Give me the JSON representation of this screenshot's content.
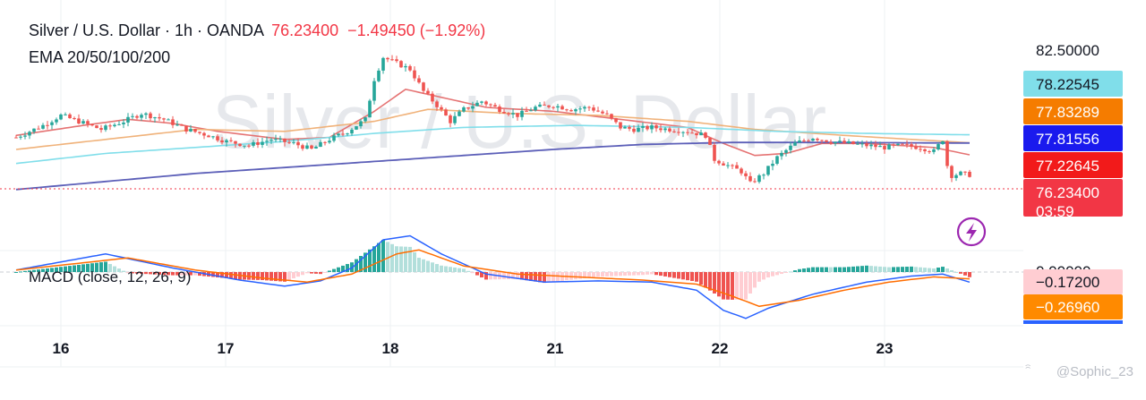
{
  "header": {
    "symbol": "Silver / U.S. Dollar · 1h · OANDA",
    "last": "76.23400",
    "change": "−1.49450 (−1.92%)",
    "indicator": "EMA 20/50/100/200"
  },
  "watermark": "Silver / U.S. Dollar",
  "macd_label": "MACD (close, 12, 26, 9)",
  "credit": "@Sophic_23",
  "countdown": "03:59",
  "colors": {
    "up": "#26a69a",
    "down": "#ef5350",
    "ema20": "#e57373",
    "ema50": "#f0b27a",
    "ema100": "#80deea",
    "ema200": "#5c5fb8",
    "macd": "#2962ff",
    "signal": "#ff6d00",
    "alert": "#9c27b0"
  },
  "chart_data": {
    "type": "candlestick",
    "x_ticks": [
      "16",
      "17",
      "18",
      "21",
      "22",
      "23"
    ],
    "price_axis_top_label": "82.50000",
    "last_price": 76.234,
    "price_badges": [
      {
        "value": "78.22545",
        "series": "ema100",
        "color": "#80deea"
      },
      {
        "value": "77.83289",
        "series": "ema50",
        "color": "#f57c00"
      },
      {
        "value": "77.81556",
        "series": "ema200",
        "color": "#1a1aee"
      },
      {
        "value": "77.22645",
        "series": "ema20",
        "color": "#f21a1a"
      },
      {
        "value": "76.23400",
        "series": "last",
        "color": "#f23645"
      }
    ],
    "macd_badges": [
      {
        "value": "−0.17200",
        "color": "#ffcdd2"
      },
      {
        "value": "−0.26960",
        "color": "#ff8a00"
      }
    ],
    "macd_zero_label": "0.00000",
    "price_keys": [
      [
        0,
        78.1
      ],
      [
        6,
        78.7
      ],
      [
        10,
        79.2
      ],
      [
        14,
        78.9
      ],
      [
        19,
        78.5
      ],
      [
        24,
        78.9
      ],
      [
        28,
        79.3
      ],
      [
        33,
        79.0
      ],
      [
        38,
        78.5
      ],
      [
        43,
        78.2
      ],
      [
        47,
        77.9
      ],
      [
        52,
        77.7
      ],
      [
        57,
        78.0
      ],
      [
        62,
        77.8
      ],
      [
        66,
        77.5
      ],
      [
        70,
        78.0
      ],
      [
        74,
        78.4
      ],
      [
        78,
        79.0
      ],
      [
        80,
        81.0
      ],
      [
        82,
        82.1
      ],
      [
        84,
        81.9
      ],
      [
        88,
        81.5
      ],
      [
        91,
        80.4
      ],
      [
        94,
        79.7
      ],
      [
        97,
        78.9
      ],
      [
        100,
        79.5
      ],
      [
        104,
        79.9
      ],
      [
        108,
        79.5
      ],
      [
        112,
        79.2
      ],
      [
        116,
        79.6
      ],
      [
        120,
        79.7
      ],
      [
        124,
        79.5
      ],
      [
        128,
        79.6
      ],
      [
        132,
        79.2
      ],
      [
        135,
        78.6
      ],
      [
        138,
        78.5
      ],
      [
        142,
        78.6
      ],
      [
        146,
        78.5
      ],
      [
        150,
        78.4
      ],
      [
        154,
        78.2
      ],
      [
        156,
        77.0
      ],
      [
        159,
        76.7
      ],
      [
        162,
        76.4
      ],
      [
        164,
        75.8
      ],
      [
        167,
        76.3
      ],
      [
        170,
        77.1
      ],
      [
        174,
        77.8
      ],
      [
        178,
        78.1
      ],
      [
        182,
        77.9
      ],
      [
        186,
        77.8
      ],
      [
        190,
        77.7
      ],
      [
        194,
        77.6
      ],
      [
        198,
        77.7
      ],
      [
        202,
        77.6
      ],
      [
        205,
        77.4
      ],
      [
        207,
        78.0
      ],
      [
        208,
        76.7
      ],
      [
        209,
        76.2
      ],
      [
        211,
        76.3
      ],
      [
        213,
        76.234
      ]
    ],
    "ema_keys": {
      "ema20": [
        [
          0,
          78.2
        ],
        [
          15,
          78.7
        ],
        [
          25,
          79.0
        ],
        [
          35,
          78.8
        ],
        [
          45,
          78.4
        ],
        [
          60,
          78.0
        ],
        [
          70,
          78.1
        ],
        [
          80,
          79.4
        ],
        [
          87,
          80.5
        ],
        [
          95,
          80.1
        ],
        [
          105,
          79.6
        ],
        [
          120,
          79.4
        ],
        [
          135,
          79.0
        ],
        [
          150,
          78.6
        ],
        [
          158,
          77.8
        ],
        [
          165,
          77.2
        ],
        [
          172,
          77.3
        ],
        [
          180,
          77.8
        ],
        [
          190,
          77.8
        ],
        [
          205,
          77.6
        ],
        [
          213,
          77.23
        ]
      ],
      "ema50": [
        [
          0,
          77.5
        ],
        [
          20,
          78.0
        ],
        [
          40,
          78.5
        ],
        [
          60,
          78.4
        ],
        [
          80,
          78.9
        ],
        [
          92,
          79.5
        ],
        [
          110,
          79.3
        ],
        [
          130,
          79.2
        ],
        [
          150,
          78.9
        ],
        [
          165,
          78.5
        ],
        [
          185,
          78.2
        ],
        [
          213,
          77.83
        ]
      ],
      "ema100": [
        [
          0,
          76.8
        ],
        [
          20,
          77.3
        ],
        [
          40,
          77.6
        ],
        [
          60,
          77.9
        ],
        [
          80,
          78.3
        ],
        [
          100,
          78.6
        ],
        [
          125,
          78.7
        ],
        [
          150,
          78.6
        ],
        [
          170,
          78.4
        ],
        [
          190,
          78.3
        ],
        [
          213,
          78.23
        ]
      ],
      "ema200": [
        [
          0,
          75.5
        ],
        [
          20,
          75.9
        ],
        [
          40,
          76.3
        ],
        [
          60,
          76.6
        ],
        [
          80,
          76.9
        ],
        [
          100,
          77.2
        ],
        [
          120,
          77.5
        ],
        [
          140,
          77.75
        ],
        [
          160,
          77.85
        ],
        [
          180,
          77.85
        ],
        [
          200,
          77.83
        ],
        [
          213,
          77.82
        ]
      ]
    },
    "macd_keys": [
      [
        0,
        0.05
      ],
      [
        20,
        0.45
      ],
      [
        35,
        0.1
      ],
      [
        50,
        -0.2
      ],
      [
        60,
        -0.35
      ],
      [
        68,
        -0.22
      ],
      [
        75,
        0.1
      ],
      [
        82,
        0.8
      ],
      [
        88,
        0.9
      ],
      [
        95,
        0.45
      ],
      [
        105,
        -0.05
      ],
      [
        118,
        -0.25
      ],
      [
        130,
        -0.22
      ],
      [
        142,
        -0.25
      ],
      [
        152,
        -0.45
      ],
      [
        158,
        -0.95
      ],
      [
        163,
        -1.15
      ],
      [
        168,
        -0.9
      ],
      [
        178,
        -0.55
      ],
      [
        190,
        -0.25
      ],
      [
        200,
        -0.1
      ],
      [
        207,
        -0.05
      ],
      [
        213,
        -0.25
      ]
    ],
    "signal_keys": [
      [
        0,
        0.05
      ],
      [
        25,
        0.35
      ],
      [
        40,
        0.05
      ],
      [
        55,
        -0.15
      ],
      [
        65,
        -0.25
      ],
      [
        75,
        -0.05
      ],
      [
        85,
        0.45
      ],
      [
        90,
        0.55
      ],
      [
        100,
        0.15
      ],
      [
        112,
        -0.05
      ],
      [
        125,
        -0.12
      ],
      [
        140,
        -0.2
      ],
      [
        152,
        -0.3
      ],
      [
        160,
        -0.6
      ],
      [
        166,
        -0.85
      ],
      [
        175,
        -0.7
      ],
      [
        185,
        -0.45
      ],
      [
        195,
        -0.25
      ],
      [
        205,
        -0.12
      ],
      [
        213,
        -0.17
      ]
    ],
    "bar_count": 214
  }
}
